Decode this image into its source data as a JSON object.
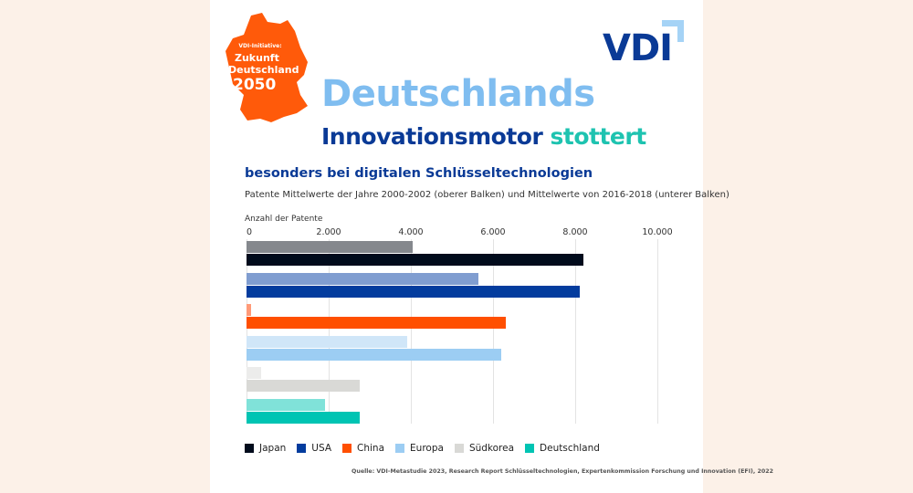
{
  "badge": {
    "line1": "VDI-Initiative:",
    "line2": "Zukunft",
    "line3": "Deutschland",
    "line4": "2050"
  },
  "logo": "VDI",
  "title": {
    "line1": "Deutschlands",
    "line2a": "Innovationsmotor",
    "line2b": "stottert"
  },
  "colors": {
    "japan": "#010b1c",
    "japan_light": "#85888d",
    "usa": "#033c9e",
    "usa_light": "#809dd0",
    "china": "#ff4f00",
    "china_light": "#ff9a78",
    "europa": "#9ccdf3",
    "europa_light": "#d0e6f8",
    "suedkorea": "#d9d9d6",
    "suedkorea_light": "#ececeb",
    "deutschland": "#00c4b3",
    "deutschland_light": "#80e2d9",
    "accent_blue": "#0a3a96"
  },
  "chart_data": {
    "type": "bar",
    "orientation": "horizontal",
    "title": "besonders bei digitalen Schlüsseltechnologien",
    "subtitle": "Patente Mittelwerte der Jahre 2000-2002 (oberer Balken) und Mittelwerte von 2016-2018 (unterer Balken)",
    "xlabel": "Anzahl der Patente",
    "xlim": [
      0,
      10000
    ],
    "ticks": [
      "0",
      "2.000",
      "4.000",
      "6.000",
      "8.000",
      "10.000"
    ],
    "tick_values": [
      0,
      2000,
      4000,
      6000,
      8000,
      10000
    ],
    "grid": true,
    "legend_position": "bottom",
    "categories": [
      "Japan",
      "USA",
      "China",
      "Europa",
      "Südkorea",
      "Deutschland"
    ],
    "series": [
      {
        "period": "2000-2002",
        "values": [
          4050,
          5650,
          100,
          3900,
          350,
          1900
        ]
      },
      {
        "period": "2016-2018",
        "values": [
          8200,
          8100,
          6300,
          6200,
          2750,
          2750
        ]
      }
    ],
    "source": "Quelle: VDI-Metastudie 2023, Research Report Schlüsseltechnologien, Expertenkommission Forschung und Innovation (EFI), 2022"
  }
}
